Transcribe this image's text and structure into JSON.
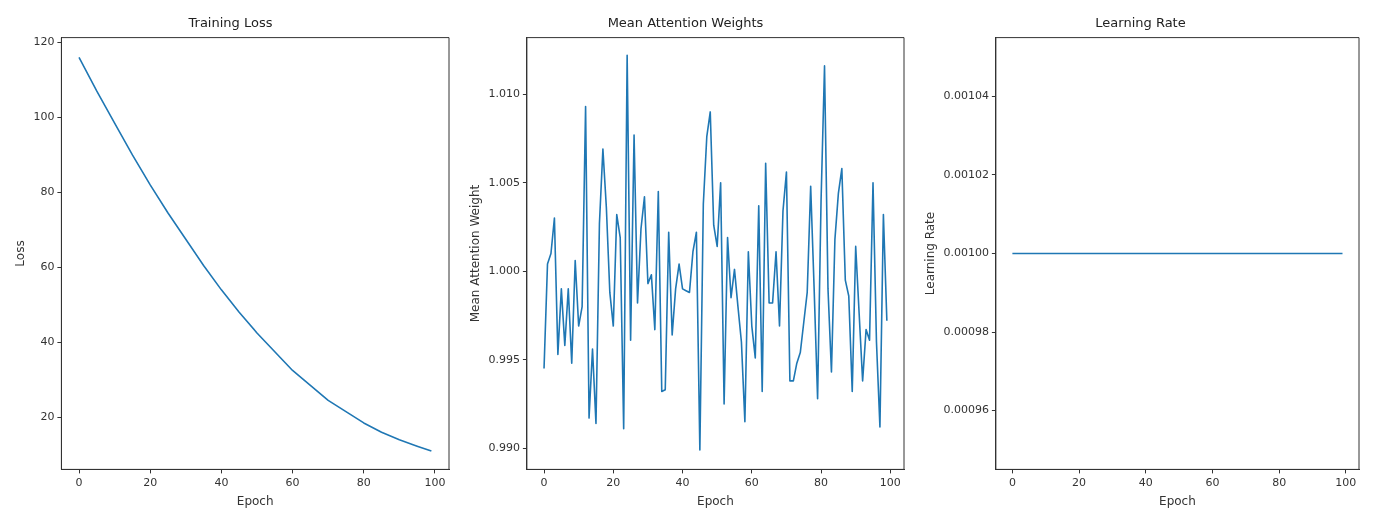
{
  "chart_data": [
    {
      "type": "line",
      "title": "Training Loss",
      "xlabel": "Epoch",
      "ylabel": "Loss",
      "xlim": [
        -4.95,
        103.95
      ],
      "xticks": [
        0,
        20,
        40,
        60,
        80,
        100
      ],
      "ylim": [
        6.1,
        121.3
      ],
      "yticks": [
        20,
        40,
        60,
        80,
        100,
        120
      ],
      "grid": false,
      "legend": false,
      "marker": "none",
      "line_style": "solid",
      "series": [
        {
          "color": "#1f77b4",
          "x": [
            0,
            5,
            10,
            15,
            20,
            25,
            30,
            35,
            40,
            45,
            50,
            55,
            60,
            65,
            70,
            75,
            80,
            85,
            90,
            95,
            99
          ],
          "values": [
            116,
            107,
            98.5,
            90,
            82,
            74.5,
            67.5,
            60.5,
            54,
            48,
            42.5,
            37.5,
            32.5,
            28.5,
            24.5,
            21.5,
            18.5,
            16,
            14,
            12.3,
            11
          ]
        }
      ]
    },
    {
      "type": "line",
      "title": "Mean Attention Weights",
      "xlabel": "Epoch",
      "ylabel": "Mean Attention Weight",
      "xlim": [
        -4.95,
        103.95
      ],
      "xticks": [
        0,
        20,
        40,
        60,
        80,
        100
      ],
      "ylim": [
        0.9888,
        1.0132
      ],
      "yticks": [
        {
          "value": 0.99,
          "label": "0.990"
        },
        0.995,
        {
          "value": 1,
          "label": "1.000"
        },
        1.005,
        {
          "value": 1.01,
          "label": "1.010"
        }
      ],
      "grid": false,
      "legend": false,
      "marker": "none",
      "line_style": "solid",
      "series": [
        {
          "color": "#1f77b4",
          "x": [
            0,
            1,
            2,
            3,
            4,
            5,
            6,
            7,
            8,
            9,
            10,
            11,
            12,
            13,
            14,
            15,
            16,
            17,
            18,
            19,
            20,
            21,
            22,
            23,
            24,
            25,
            26,
            27,
            28,
            29,
            30,
            31,
            32,
            33,
            34,
            35,
            36,
            37,
            38,
            39,
            40,
            41,
            42,
            43,
            44,
            45,
            46,
            47,
            48,
            49,
            50,
            51,
            52,
            53,
            54,
            55,
            56,
            57,
            58,
            59,
            60,
            61,
            62,
            63,
            64,
            65,
            66,
            67,
            68,
            69,
            70,
            71,
            72,
            73,
            74,
            75,
            76,
            77,
            78,
            79,
            80,
            81,
            82,
            83,
            84,
            85,
            86,
            87,
            88,
            89,
            90,
            91,
            92,
            93,
            94,
            95,
            96,
            97,
            98,
            99
          ],
          "values": [
            0.9945,
            1.0004,
            1.001,
            1.003,
            0.9953,
            0.999,
            0.9958,
            0.999,
            0.9948,
            1.0006,
            0.9969,
            0.998,
            1.0093,
            0.9917,
            0.9956,
            0.9914,
            1.0027,
            1.0069,
            1.0036,
            0.9988,
            0.9969,
            1.0032,
            1.0019,
            0.9911,
            1.0122,
            0.9961,
            1.0077,
            0.9982,
            1.0024,
            1.0042,
            0.9993,
            0.9998,
            0.9967,
            1.0045,
            0.9932,
            0.9933,
            1.0022,
            0.9964,
            0.999,
            1.0004,
            0.999,
            0.9989,
            0.9988,
            1.0011,
            1.0022,
            0.9899,
            1.0038,
            1.0076,
            1.009,
            1.0026,
            1.0014,
            1.005,
            0.9925,
            1.0019,
            0.9985,
            1.0001,
            0.998,
            0.996,
            0.9915,
            1.0011,
            0.9969,
            0.9951,
            1.0037,
            0.9932,
            1.0061,
            0.9982,
            0.9982,
            1.0011,
            0.9969,
            1.0034,
            1.0056,
            0.9938,
            0.9938,
            0.9948,
            0.9954,
            0.9971,
            0.9988,
            1.0048,
            0.999,
            0.9928,
            1.004,
            1.0116,
            0.999,
            0.9943,
            1.0018,
            1.0044,
            1.0058,
            0.9995,
            0.9986,
            0.9932,
            1.0014,
            0.9976,
            0.9938,
            0.9967,
            0.9961,
            1.005,
            0.996,
            0.9912,
            1.0032,
            0.9972
          ]
        }
      ]
    },
    {
      "type": "line",
      "title": "Learning Rate",
      "xlabel": "Epoch",
      "ylabel": "Learning Rate",
      "xlim": [
        -4.95,
        103.95
      ],
      "xticks": [
        0,
        20,
        40,
        60,
        80,
        100
      ],
      "ylim": [
        0.000945,
        0.001055
      ],
      "yticks": [
        0.00096,
        0.00098,
        {
          "value": 0.001,
          "label": "0.00100"
        },
        0.00102,
        0.00104
      ],
      "grid": false,
      "legend": false,
      "marker": "none",
      "line_style": "solid",
      "series": [
        {
          "color": "#1f77b4",
          "x": [
            0,
            99
          ],
          "values": [
            0.001,
            0.001
          ]
        }
      ]
    }
  ]
}
